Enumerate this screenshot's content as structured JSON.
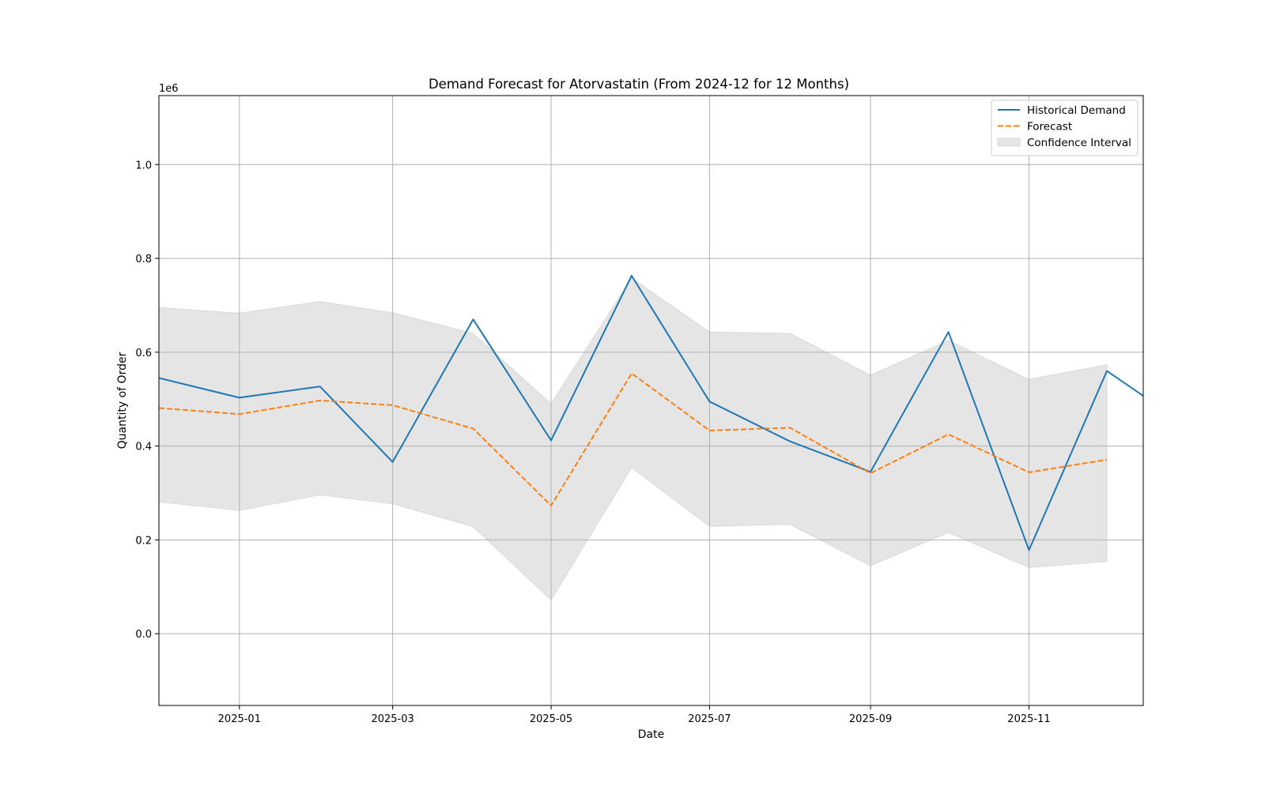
{
  "chart_data": {
    "type": "line",
    "title": "Demand Forecast for Atorvastatin (From 2024-12 for 12 Months)",
    "xlabel": "Date",
    "ylabel": "Quantity of Order",
    "y_offset_label": "1e6",
    "y_scale_factor": 1000000,
    "xlim": [
      "2024-12-01",
      "2025-12-15"
    ],
    "ylim": [
      -153000,
      1147000
    ],
    "x_ticks": [
      {
        "date": "2025-01-01",
        "label": "2025-01"
      },
      {
        "date": "2025-03-01",
        "label": "2025-03"
      },
      {
        "date": "2025-05-01",
        "label": "2025-05"
      },
      {
        "date": "2025-07-01",
        "label": "2025-07"
      },
      {
        "date": "2025-09-01",
        "label": "2025-09"
      },
      {
        "date": "2025-11-01",
        "label": "2025-11"
      }
    ],
    "y_ticks": [
      {
        "value": 0,
        "label": "0.0"
      },
      {
        "value": 200000,
        "label": "0.2"
      },
      {
        "value": 400000,
        "label": "0.4"
      },
      {
        "value": 600000,
        "label": "0.6"
      },
      {
        "value": 800000,
        "label": "0.8"
      },
      {
        "value": 1000000,
        "label": "1.0"
      }
    ],
    "grid": true,
    "legend_position": "top-right",
    "series": [
      {
        "name": "Historical Demand",
        "color": "#1f77b4",
        "style": "solid",
        "x": [
          "2024-12-01",
          "2025-01-01",
          "2025-02-01",
          "2025-03-01",
          "2025-04-01",
          "2025-05-01",
          "2025-06-01",
          "2025-07-01",
          "2025-08-01",
          "2025-09-01",
          "2025-10-01",
          "2025-11-01",
          "2025-12-01",
          "2025-12-15"
        ],
        "values": [
          545000,
          503000,
          527000,
          366000,
          670000,
          412000,
          763000,
          495000,
          410000,
          345000,
          643000,
          178000,
          560000,
          507000
        ]
      },
      {
        "name": "Forecast",
        "color": "#ff7f0e",
        "style": "dashed",
        "x": [
          "2024-12-01",
          "2025-01-01",
          "2025-02-01",
          "2025-03-01",
          "2025-04-01",
          "2025-05-01",
          "2025-06-01",
          "2025-07-01",
          "2025-08-01",
          "2025-09-01",
          "2025-10-01",
          "2025-11-01",
          "2025-12-01"
        ],
        "values": [
          481000,
          468000,
          497000,
          487000,
          437000,
          273000,
          555000,
          433000,
          439000,
          342000,
          425000,
          344000,
          371000
        ]
      }
    ],
    "confidence_interval": {
      "name": "Confidence Interval",
      "color": "#e5e5e5",
      "x": [
        "2024-12-01",
        "2025-01-01",
        "2025-02-01",
        "2025-03-01",
        "2025-04-01",
        "2025-05-01",
        "2025-06-01",
        "2025-07-01",
        "2025-08-01",
        "2025-09-01",
        "2025-10-01",
        "2025-11-01",
        "2025-12-01"
      ],
      "upper": [
        695000,
        683000,
        708000,
        684000,
        640000,
        490000,
        758000,
        643000,
        640000,
        551000,
        625000,
        542000,
        573000
      ],
      "lower": [
        281000,
        263000,
        296000,
        277000,
        228000,
        72000,
        354000,
        229000,
        233000,
        145000,
        216000,
        141000,
        154000
      ]
    }
  }
}
